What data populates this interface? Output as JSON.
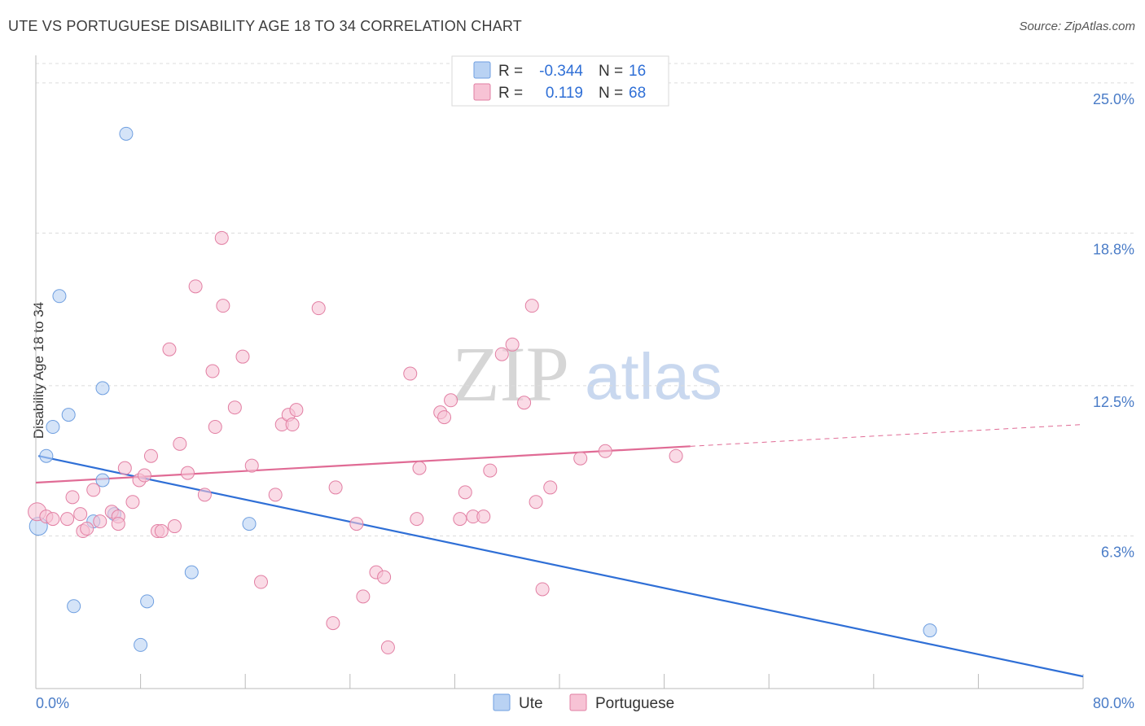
{
  "chart_data": {
    "type": "scatter",
    "title": "UTE VS PORTUGUESE DISABILITY AGE 18 TO 34 CORRELATION CHART",
    "source": "Source: ZipAtlas.com",
    "xlabel": "",
    "ylabel": "Disability Age 18 to 34",
    "xlim": [
      0,
      80
    ],
    "ylim": [
      0,
      25.8
    ],
    "x_tick_labels": [
      "0.0%",
      "80.0%"
    ],
    "y_ticks": [
      6.3,
      12.5,
      18.8,
      25.0
    ],
    "y_tick_labels": [
      "6.3%",
      "12.5%",
      "18.8%",
      "25.0%"
    ],
    "watermark": {
      "part1": "ZIP",
      "part2": "atlas"
    },
    "legend": {
      "r_label": "R =",
      "n_label": "N =",
      "entries": [
        {
          "name": "Ute",
          "r": "-0.344",
          "n": "16",
          "color": "#6f9fe0",
          "fill": "#b9d2f3"
        },
        {
          "name": "Portuguese",
          "r": "0.119",
          "n": "68",
          "color": "#e27fa3",
          "fill": "#f7c3d5"
        }
      ]
    },
    "series": [
      {
        "name": "Ute",
        "color": "#6f9fe0",
        "fill": "#b9d2f3",
        "trend": {
          "x0": 0.2,
          "y0": 9.6,
          "x1": 80.0,
          "y1": 0.5,
          "solid_until": 80.0
        },
        "points": [
          [
            6.9,
            22.9
          ],
          [
            1.8,
            16.2
          ],
          [
            5.1,
            12.4
          ],
          [
            2.5,
            11.3
          ],
          [
            1.3,
            10.8
          ],
          [
            0.8,
            9.6
          ],
          [
            5.1,
            8.6
          ],
          [
            0.2,
            6.7
          ],
          [
            6.0,
            7.2
          ],
          [
            4.4,
            6.9
          ],
          [
            16.3,
            6.8
          ],
          [
            11.9,
            4.8
          ],
          [
            8.5,
            3.6
          ],
          [
            2.9,
            3.4
          ],
          [
            8.0,
            1.8
          ],
          [
            68.3,
            2.4
          ]
        ]
      },
      {
        "name": "Portuguese",
        "color": "#e27fa3",
        "fill": "#f7c3d5",
        "trend": {
          "x0": 0.0,
          "y0": 8.5,
          "x1": 80.0,
          "y1": 10.9,
          "solid_until": 50.0
        },
        "points": [
          [
            0.1,
            7.3
          ],
          [
            0.8,
            7.1
          ],
          [
            1.3,
            7.0
          ],
          [
            2.4,
            7.0
          ],
          [
            3.6,
            6.5
          ],
          [
            3.9,
            6.6
          ],
          [
            2.8,
            7.9
          ],
          [
            3.4,
            7.2
          ],
          [
            4.4,
            8.2
          ],
          [
            4.9,
            6.9
          ],
          [
            5.8,
            7.3
          ],
          [
            6.3,
            7.1
          ],
          [
            6.3,
            6.8
          ],
          [
            6.8,
            9.1
          ],
          [
            7.4,
            7.7
          ],
          [
            7.9,
            8.6
          ],
          [
            8.3,
            8.8
          ],
          [
            8.8,
            9.6
          ],
          [
            9.3,
            6.5
          ],
          [
            9.6,
            6.5
          ],
          [
            10.2,
            14.0
          ],
          [
            10.6,
            6.7
          ],
          [
            11.0,
            10.1
          ],
          [
            11.6,
            8.9
          ],
          [
            12.2,
            16.6
          ],
          [
            12.9,
            8.0
          ],
          [
            13.5,
            13.1
          ],
          [
            13.7,
            10.8
          ],
          [
            14.3,
            15.8
          ],
          [
            14.2,
            18.6
          ],
          [
            15.2,
            11.6
          ],
          [
            15.8,
            13.7
          ],
          [
            16.5,
            9.2
          ],
          [
            17.2,
            4.4
          ],
          [
            18.3,
            8.0
          ],
          [
            18.8,
            10.9
          ],
          [
            19.3,
            11.3
          ],
          [
            19.6,
            10.9
          ],
          [
            19.9,
            11.5
          ],
          [
            21.6,
            15.7
          ],
          [
            22.7,
            2.7
          ],
          [
            22.9,
            8.3
          ],
          [
            24.5,
            6.8
          ],
          [
            25.0,
            3.8
          ],
          [
            26.0,
            4.8
          ],
          [
            26.6,
            4.6
          ],
          [
            26.9,
            1.7
          ],
          [
            28.6,
            13.0
          ],
          [
            29.1,
            7.0
          ],
          [
            29.3,
            9.1
          ],
          [
            30.9,
            11.4
          ],
          [
            31.2,
            11.2
          ],
          [
            31.7,
            11.9
          ],
          [
            32.4,
            7.0
          ],
          [
            32.8,
            8.1
          ],
          [
            33.4,
            7.1
          ],
          [
            34.2,
            7.1
          ],
          [
            34.7,
            9.0
          ],
          [
            35.6,
            13.8
          ],
          [
            36.4,
            14.2
          ],
          [
            37.3,
            11.8
          ],
          [
            37.9,
            15.8
          ],
          [
            38.2,
            7.7
          ],
          [
            38.7,
            4.1
          ],
          [
            39.3,
            8.3
          ],
          [
            41.6,
            9.5
          ],
          [
            43.5,
            9.8
          ],
          [
            48.9,
            9.6
          ]
        ]
      }
    ]
  },
  "bottom_legend": [
    {
      "label": "Ute",
      "fill": "#b9d2f3",
      "stroke": "#6f9fe0"
    },
    {
      "label": "Portuguese",
      "fill": "#f7c3d5",
      "stroke": "#e27fa3"
    }
  ]
}
